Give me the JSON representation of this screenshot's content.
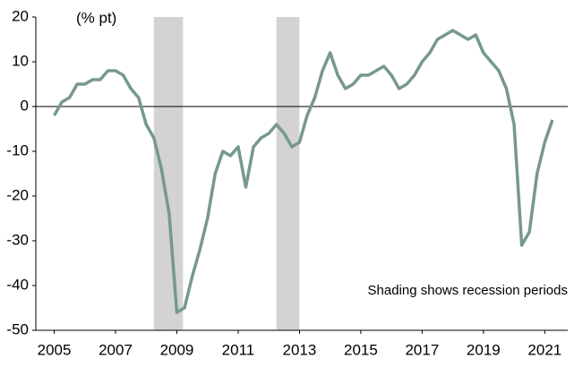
{
  "chart_data": {
    "type": "line",
    "unit_label": "(% pt)",
    "annotation": "Shading shows recession periods",
    "x": [
      2005,
      2005.25,
      2005.5,
      2005.75,
      2006,
      2006.25,
      2006.5,
      2006.75,
      2007,
      2007.25,
      2007.5,
      2007.75,
      2008,
      2008.25,
      2008.5,
      2008.75,
      2009,
      2009.25,
      2009.5,
      2009.75,
      2010,
      2010.25,
      2010.5,
      2010.75,
      2011,
      2011.25,
      2011.5,
      2011.75,
      2012,
      2012.25,
      2012.5,
      2012.75,
      2013,
      2013.25,
      2013.5,
      2013.75,
      2014,
      2014.25,
      2014.5,
      2014.75,
      2015,
      2015.25,
      2015.5,
      2015.75,
      2016,
      2016.25,
      2016.5,
      2016.75,
      2017,
      2017.25,
      2017.5,
      2017.75,
      2018,
      2018.25,
      2018.5,
      2018.75,
      2019,
      2019.25,
      2019.5,
      2019.75,
      2020,
      2020.25,
      2020.5,
      2020.75,
      2021,
      2021.25
    ],
    "series": [
      {
        "color": "#76998a",
        "values": [
          -2,
          1,
          2,
          5,
          5,
          6,
          6,
          8,
          8,
          7,
          4,
          2,
          -4,
          -7,
          -14,
          -24,
          -46,
          -45,
          -38,
          -32,
          -25,
          -15,
          -10,
          -11,
          -9,
          -18,
          -9,
          -7,
          -6,
          -4,
          -6,
          -9,
          -8,
          -2,
          2,
          8,
          12,
          7,
          4,
          5,
          7,
          7,
          8,
          9,
          7,
          4,
          5,
          7,
          10,
          12,
          15,
          16,
          17,
          16,
          15,
          16,
          12,
          10,
          8,
          4,
          -4,
          -31,
          -28,
          -15,
          -8,
          -3
        ]
      }
    ],
    "shaded_periods": [
      [
        2008.25,
        2009.2
      ],
      [
        2012.25,
        2013
      ]
    ],
    "shade_color": "#d3d3d3",
    "xlim": [
      2004.4,
      2021.75
    ],
    "xticks": [
      2005,
      2007,
      2009,
      2011,
      2013,
      2015,
      2017,
      2019,
      2021
    ],
    "ylim": [
      -50,
      20
    ],
    "yticks": [
      -50,
      -40,
      -30,
      -20,
      -10,
      0,
      10,
      20
    ],
    "zero_line": true
  }
}
